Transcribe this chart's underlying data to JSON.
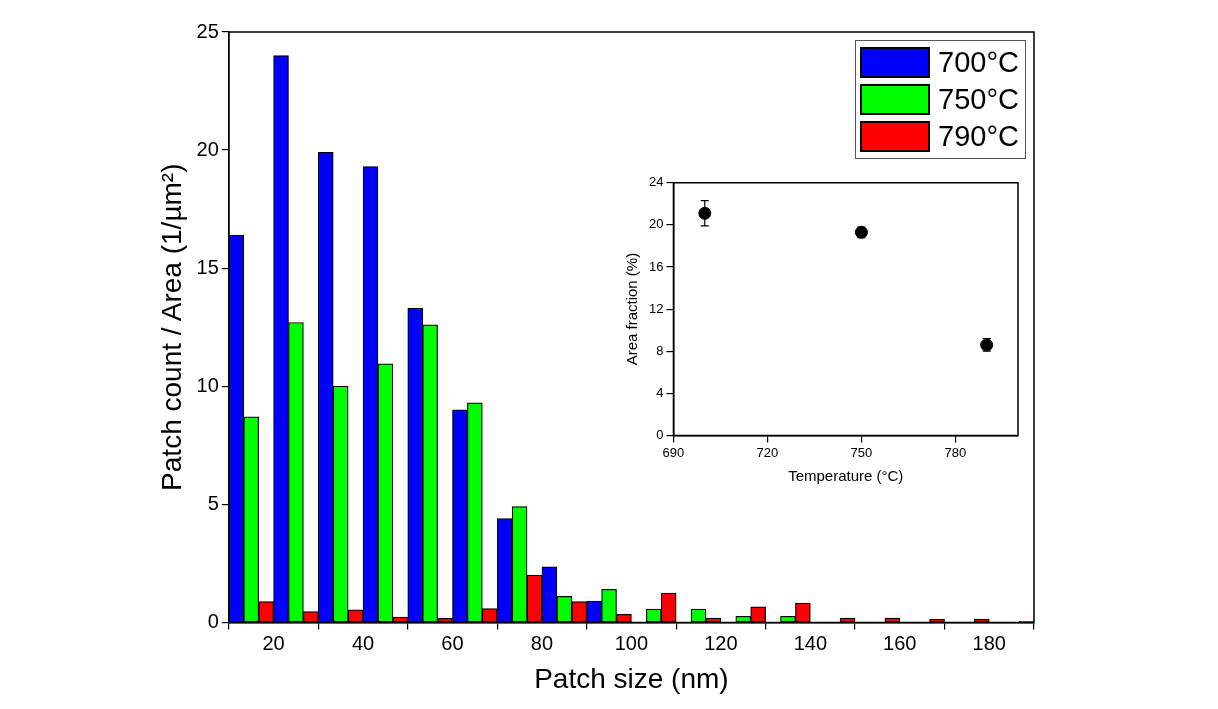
{
  "chart_data": [
    {
      "type": "bar",
      "xlabel": "Patch size (nm)",
      "ylabel": "Patch count / Area (1/µm²)",
      "x": [
        15,
        25,
        35,
        45,
        55,
        65,
        75,
        85,
        95,
        105,
        115,
        125,
        135,
        145,
        155,
        165,
        175,
        185
      ],
      "xlim": [
        10,
        190
      ],
      "xticks": [
        20,
        40,
        60,
        80,
        100,
        120,
        140,
        160,
        180
      ],
      "ylim": [
        0,
        25
      ],
      "yticks": [
        0,
        5,
        10,
        15,
        20,
        25
      ],
      "legend": "top right",
      "series": [
        {
          "name": "700°C",
          "color": "#0000ff",
          "values": [
            16.4,
            24.0,
            19.9,
            19.3,
            13.3,
            9.0,
            4.4,
            2.35,
            0.9,
            null,
            null,
            null,
            null,
            null,
            null,
            null,
            null,
            null
          ]
        },
        {
          "name": "750°C",
          "color": "#00ff00",
          "values": [
            8.7,
            12.7,
            10.0,
            10.95,
            12.6,
            9.3,
            4.9,
            1.1,
            1.4,
            0.56,
            0.56,
            0.26,
            0.26,
            null,
            null,
            null,
            null,
            null
          ]
        },
        {
          "name": "790°C",
          "color": "#ff0000",
          "values": [
            0.88,
            0.46,
            0.53,
            0.22,
            0.17,
            0.58,
            2.0,
            0.88,
            0.34,
            1.24,
            0.18,
            0.66,
            0.82,
            0.18,
            0.18,
            0.14,
            0.14,
            0.05
          ]
        }
      ]
    },
    {
      "type": "scatter",
      "xlabel": "Temperature (°C)",
      "ylabel": "Area fraction (%)",
      "x": [
        700,
        750,
        790
      ],
      "values": [
        21.1,
        19.3,
        8.6
      ],
      "errors": [
        1.2,
        0.5,
        0.6
      ],
      "color": "#000000",
      "marker": "circle",
      "xlim": [
        690,
        800
      ],
      "xticks": [
        690,
        720,
        750,
        780
      ],
      "ylim": [
        0,
        24
      ],
      "yticks": [
        0,
        4,
        8,
        12,
        16,
        20,
        24
      ]
    }
  ]
}
